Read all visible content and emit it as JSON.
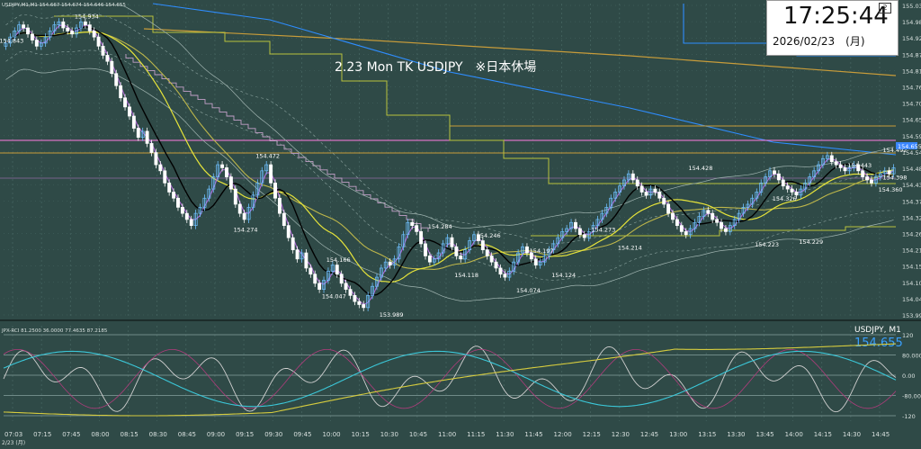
{
  "chart_data": [
    {
      "type": "candlestick",
      "symbol_header": "USDJPY,M1,M1",
      "ohlc_header": "154.667 154.674 154.646 154.655",
      "annotation": "2.23 Mon TK USDJPY　※日本休場",
      "ylim": [
        153.96,
        154.99
      ],
      "price_ticks": [
        "155.035",
        "154.980",
        "154.925",
        "154.870",
        "154.815",
        "154.760",
        "154.705",
        "154.655",
        "154.595",
        "154.540",
        "154.485",
        "154.430",
        "154.375",
        "154.320",
        "154.265",
        "154.210",
        "154.155",
        "154.100",
        "154.045",
        "153.990"
      ],
      "time_ticks": [
        "07:03",
        "07:15",
        "07:45",
        "08:00",
        "08:15",
        "08:30",
        "08:45",
        "09:00",
        "09:15",
        "09:30",
        "09:45",
        "10:00",
        "10:15",
        "10:30",
        "10:45",
        "11:00",
        "11:15",
        "11:30",
        "11:45",
        "12:00",
        "12:15",
        "12:30",
        "12:45",
        "13:00",
        "13:15",
        "13:30",
        "13:45",
        "14:00",
        "14:15",
        "14:30",
        "14:45"
      ],
      "date_label": "2/23 (月)",
      "labels": [
        {
          "text": "154.843",
          "t": 1,
          "price": 154.85
        },
        {
          "text": "154.934",
          "t": 18,
          "price": 154.93
        },
        {
          "text": "154.472",
          "t": 59,
          "price": 154.47
        },
        {
          "text": "154.274",
          "t": 54,
          "price": 154.27
        },
        {
          "text": "154.166",
          "t": 75,
          "price": 154.17
        },
        {
          "text": "154.047",
          "t": 74,
          "price": 154.05
        },
        {
          "text": "153.989",
          "t": 87,
          "price": 153.99
        },
        {
          "text": "154.284",
          "t": 98,
          "price": 154.28
        },
        {
          "text": "154.246",
          "t": 109,
          "price": 154.25
        },
        {
          "text": "154.118",
          "t": 104,
          "price": 154.12
        },
        {
          "text": "154.197",
          "t": 121,
          "price": 154.2
        },
        {
          "text": "154.074",
          "t": 118,
          "price": 154.07
        },
        {
          "text": "154.124",
          "t": 126,
          "price": 154.12
        },
        {
          "text": "154.273",
          "t": 135,
          "price": 154.27
        },
        {
          "text": "154.214",
          "t": 141,
          "price": 154.21
        },
        {
          "text": "154.428",
          "t": 157,
          "price": 154.43
        },
        {
          "text": "154.326",
          "t": 176,
          "price": 154.33
        },
        {
          "text": "154.223",
          "t": 172,
          "price": 154.22
        },
        {
          "text": "154.229",
          "t": 182,
          "price": 154.23
        },
        {
          "text": "154.443",
          "t": 193,
          "price": 154.44
        },
        {
          "text": "154.360",
          "t": 200,
          "price": 154.36
        },
        {
          "text": "154.492",
          "t": 208,
          "price": 154.49
        },
        {
          "text": "154.398",
          "t": 219,
          "price": 154.4
        }
      ],
      "closes": [
        154.86,
        154.88,
        154.9,
        154.92,
        154.91,
        154.89,
        154.87,
        154.85,
        154.86,
        154.88,
        154.9,
        154.92,
        154.93,
        154.91,
        154.9,
        154.89,
        154.91,
        154.93,
        154.92,
        154.9,
        154.88,
        154.85,
        154.82,
        154.8,
        154.76,
        154.72,
        154.68,
        154.65,
        154.62,
        154.58,
        154.55,
        154.57,
        154.53,
        154.5,
        154.46,
        154.44,
        154.4,
        154.37,
        154.35,
        154.32,
        154.3,
        154.28,
        154.26,
        154.3,
        154.32,
        154.35,
        154.38,
        154.42,
        154.46,
        154.45,
        154.42,
        154.38,
        154.33,
        154.3,
        154.28,
        154.32,
        154.36,
        154.4,
        154.44,
        154.46,
        154.4,
        154.35,
        154.3,
        154.26,
        154.22,
        154.18,
        154.15,
        154.17,
        154.12,
        154.1,
        154.07,
        154.05,
        154.08,
        154.11,
        154.13,
        154.1,
        154.07,
        154.05,
        154.03,
        154.01,
        154.0,
        153.99,
        154.03,
        154.06,
        154.09,
        154.12,
        154.14,
        154.13,
        154.15,
        154.19,
        154.23,
        154.27,
        154.26,
        154.24,
        154.2,
        154.16,
        154.14,
        154.15,
        154.17,
        154.2,
        154.22,
        154.19,
        154.16,
        154.15,
        154.18,
        154.21,
        154.23,
        154.21,
        154.18,
        154.16,
        154.14,
        154.12,
        154.1,
        154.09,
        154.11,
        154.14,
        154.17,
        154.19,
        154.17,
        154.15,
        154.13,
        154.14,
        154.16,
        154.18,
        154.2,
        154.22,
        154.24,
        154.25,
        154.27,
        154.25,
        154.23,
        154.22,
        154.24,
        154.26,
        154.28,
        154.3,
        154.32,
        154.35,
        154.37,
        154.39,
        154.41,
        154.43,
        154.41,
        154.39,
        154.37,
        154.36,
        154.38,
        154.37,
        154.35,
        154.33,
        154.3,
        154.28,
        154.26,
        154.24,
        154.23,
        154.25,
        154.27,
        154.29,
        154.31,
        154.3,
        154.28,
        154.27,
        154.25,
        154.24,
        154.26,
        154.28,
        154.3,
        154.32,
        154.33,
        154.35,
        154.37,
        154.4,
        154.42,
        154.44,
        154.43,
        154.41,
        154.39,
        154.38,
        154.37,
        154.36,
        154.38,
        154.4,
        154.42,
        154.44,
        154.46,
        154.48,
        154.49,
        154.47,
        154.46,
        154.45,
        154.44,
        154.45,
        154.46,
        154.44,
        154.42,
        154.41,
        154.4,
        154.42,
        154.43,
        154.44,
        154.43,
        154.45
      ],
      "indicator": {
        "header": "JPX-RCI 81.2500 36.0000 77.4635 87.2185",
        "symbol": "USDJPY, M1",
        "last_price": "154.655",
        "ylim": [
          -100,
          120
        ],
        "ticks": [
          "120",
          "80.0000",
          "0.00",
          "-80.0000",
          "-120"
        ]
      }
    }
  ],
  "colors": {
    "bg": "#2f4a47",
    "grid": "#486864",
    "up": "#6fc0ff",
    "down": "#ffffff",
    "ma_black": "#000000",
    "ma_purple": "#b26ad8",
    "ma_yellow": "#e6e43a",
    "ma_olive": "#bdb64a",
    "envelope": "#a0b4b0",
    "step_upper": "#b8c23c",
    "step_purple": "#c3a0c8",
    "long_ma": "#c89c3a",
    "ichimoku": "#2e8dff",
    "accent_line": "#ff7ce0",
    "rci_cyan": "#3bc7d8",
    "rci_white": "#d0d0d0",
    "rci_purple": "#b03c7c",
    "rci_yellow": "#d5cb3e"
  },
  "clock": {
    "time": "17:25:44",
    "date": "2026/02/23　(月)",
    "icon": "2"
  }
}
